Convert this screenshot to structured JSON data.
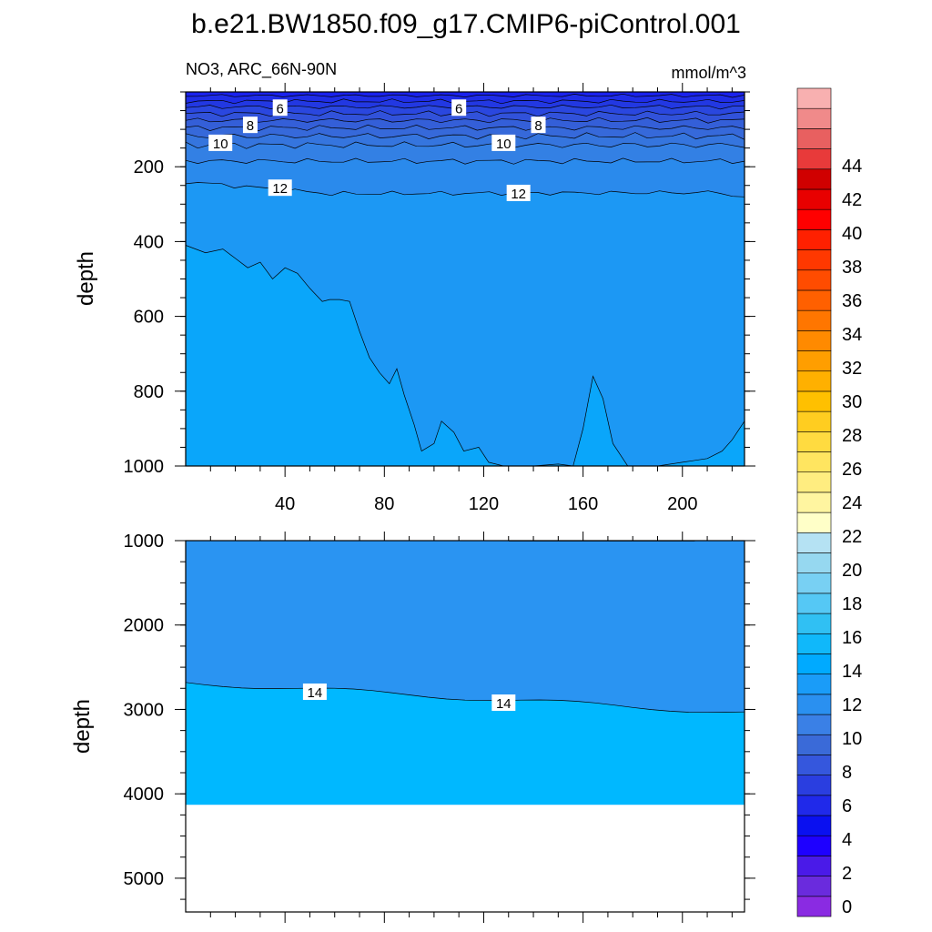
{
  "chart_data": {
    "type": "contour",
    "title": "b.e21.BW1850.f09_g17.CMIP6-piControl.001",
    "variable_label": "NO3, ARC_66N-90N",
    "units_label": "mmol/m^3",
    "colorbar": {
      "tick_labels": [
        "0",
        "2",
        "4",
        "6",
        "8",
        "10",
        "12",
        "14",
        "16",
        "18",
        "20",
        "22",
        "24",
        "26",
        "28",
        "30",
        "32",
        "34",
        "36",
        "38",
        "40",
        "42",
        "44"
      ],
      "colors": [
        "#8a2be2",
        "#6a2bdd",
        "#4a1ae8",
        "#1e00ff",
        "#0a10f0",
        "#2029ea",
        "#2a3ee0",
        "#3557dd",
        "#3a6ad8",
        "#3a80e6",
        "#2a90f0",
        "#1a9cf8",
        "#00aaff",
        "#10b8fa",
        "#30c0f3",
        "#55c8f5",
        "#78d0f3",
        "#96d8f0",
        "#b5e2f3",
        "#ffffc8",
        "#fff5a0",
        "#ffed80",
        "#ffe560",
        "#ffdb40",
        "#ffcd20",
        "#ffc000",
        "#ffb000",
        "#ff9e00",
        "#ff8a00",
        "#ff7600",
        "#ff6000",
        "#ff4c00",
        "#ff3800",
        "#ff2000",
        "#ff0000",
        "#e80000",
        "#d00000",
        "#e83a3a",
        "#e86060",
        "#f08a8a",
        "#f8b0b0"
      ]
    },
    "panels": [
      {
        "name": "upper",
        "ylabel": "depth",
        "ylim": [
          1000,
          0
        ],
        "xlim": [
          0,
          225
        ],
        "x_ticks": [
          40,
          80,
          120,
          160,
          200
        ],
        "x_tick_labels": [
          "40",
          "80",
          "120",
          "160",
          "200"
        ],
        "y_ticks": [
          200,
          400,
          600,
          800,
          1000
        ],
        "y_tick_labels": [
          "200",
          "400",
          "600",
          "800",
          "1000"
        ],
        "contour_labels": [
          {
            "text": "6",
            "x": 38,
            "y": 42
          },
          {
            "text": "6",
            "x": 110,
            "y": 42
          },
          {
            "text": "8",
            "x": 26,
            "y": 88
          },
          {
            "text": "8",
            "x": 142,
            "y": 88
          },
          {
            "text": "10",
            "x": 14,
            "y": 136
          },
          {
            "text": "10",
            "x": 128,
            "y": 136
          },
          {
            "text": "12",
            "x": 38,
            "y": 256
          },
          {
            "text": "12",
            "x": 134,
            "y": 270
          }
        ]
      },
      {
        "name": "lower",
        "ylabel": "depth",
        "ylim": [
          5400,
          1000
        ],
        "xlim": [
          0,
          225
        ],
        "x_ticks": [
          40,
          80,
          120,
          160,
          200
        ],
        "y_ticks": [
          1000,
          2000,
          3000,
          4000,
          5000
        ],
        "y_tick_labels": [
          "1000",
          "2000",
          "3000",
          "4000",
          "5000"
        ],
        "contour_labels": [
          {
            "text": "14",
            "x": 52,
            "y": 2790
          },
          {
            "text": "14",
            "x": 128,
            "y": 2920
          }
        ],
        "seafloor_depth": 4130
      }
    ]
  }
}
